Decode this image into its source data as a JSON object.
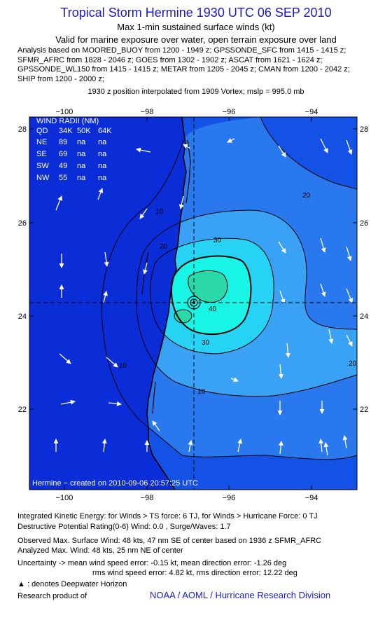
{
  "header": {
    "title": "Tropical Storm Hermine 1930 UTC 06 SEP 2010",
    "subtitle1": "Max 1-min sustained surface winds (kt)",
    "subtitle2": "Valid for marine exposure over water, open terrain exposure over land",
    "analysis_lines": [
      "Analysis based on MOORED_BUOY from 1200 - 1949 z; GPSSONDE_SFC from 1415 - 1415 z;",
      "SFMR_AFRC from 1828 - 2046 z; GOES from 1302 - 1902 z; ASCAT from 1621 - 1624 z;",
      "GPSSONDE_WL150 from 1415 - 1415 z; METAR from 1205 - 2045 z; CMAN from 1200 - 2042 z;",
      "SHIP from 1200 - 2000 z;"
    ],
    "interp_note": "1930 z position interpolated from 1909 Vortex; mslp = 995.0 mb"
  },
  "map": {
    "lon_labels": [
      "−100",
      "−98",
      "−96",
      "−94"
    ],
    "lat_labels": [
      "28",
      "26",
      "24",
      "22"
    ],
    "contour_labels": [
      "10",
      "10",
      "20",
      "20",
      "20",
      "30",
      "30",
      "40",
      "10"
    ],
    "wind_radii": {
      "title": "WIND RADII (NM)",
      "header": [
        "QD",
        "34K",
        "50K",
        "64K"
      ],
      "rows": [
        [
          "NE",
          "89",
          "na",
          "na"
        ],
        [
          "SE",
          "69",
          "na",
          "na"
        ],
        [
          "SW",
          "49",
          "na",
          "na"
        ],
        [
          "NW",
          "55",
          "na",
          "na"
        ]
      ]
    },
    "credit": "Hermine − created on 2010-09-06 20:57:25 UTC",
    "colors": {
      "ocean_far": "#1452e6",
      "band_10": "#2a78ee",
      "band_20": "#3aa2f4",
      "band_30": "#27d3f4",
      "band_40": "#18f5e6",
      "core": "#2ad8a8",
      "land_deep": "#0a2dd8"
    }
  },
  "footer": {
    "ike": "Integrated Kinetic Energy:  for Winds > TS force: 6 TJ,  for Winds > Hurricane Force: 0 TJ",
    "dpr": "Destructive Potential Rating(0-6)   Wind: 0.0 , Surge/Waves: 1.7",
    "obs": "Observed Max. Surface Wind: 48 kts, 47 nm SE of center based on 1936 z SFMR_AFRC",
    "analyzed": "Analyzed Max. Wind: 48 kts, 25 nm NE of center",
    "uncert1": "Uncertainty -> mean wind speed error:  -0.15 kt,   mean direction error:  -1.26 deg",
    "uncert2": "rms wind speed error: 4.82 kt,   rms direction error: 12.22 deg",
    "deepwater": ": denotes Deepwater Horizon",
    "research": "Research product of",
    "noaa": "NOAA / AOML / Hurricane Research Division"
  }
}
